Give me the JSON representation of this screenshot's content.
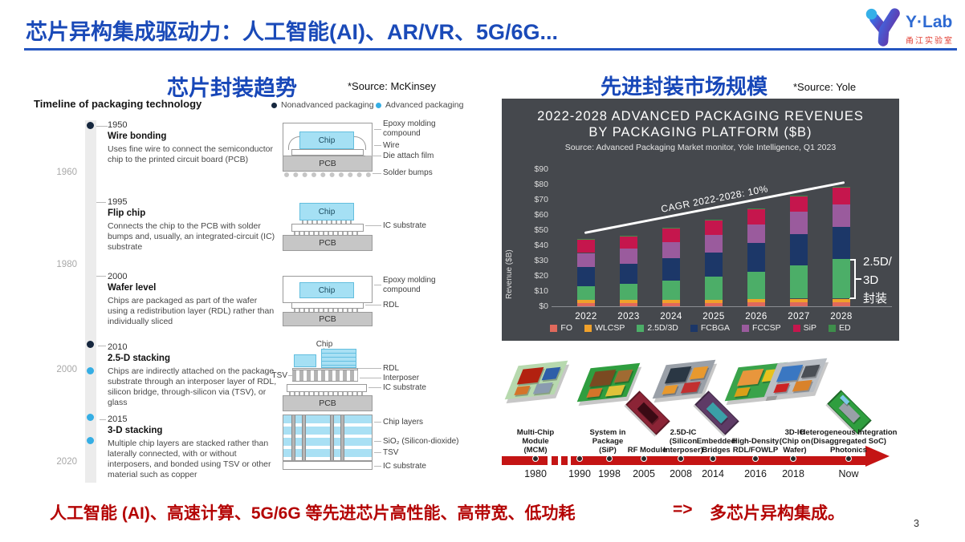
{
  "header": {
    "title": "芯片异构集成驱动力：人工智能(AI)、AR/VR、5G/6G...",
    "logo_text": "Y·Lab",
    "logo_subtext": "甬江实验室"
  },
  "left": {
    "heading": "芯片封装趋势",
    "source": "*Source: McKinsey",
    "timeline_title": "Timeline of packaging technology",
    "legend": [
      {
        "label": "Nonadvanced packaging",
        "color": "#16273e"
      },
      {
        "label": "Advanced packaging",
        "color": "#35aee4"
      }
    ],
    "axis_years": [
      "1960",
      "1980",
      "2000",
      "2020"
    ],
    "entries": [
      {
        "year": "1950",
        "title": "Wire bonding",
        "desc": "Uses fine wire to connect the semiconductor chip to the printed circuit board (PCB)"
      },
      {
        "year": "1995",
        "title": "Flip chip",
        "desc": "Connects the chip to the PCB with solder bumps and, usually, an integrated-circuit (IC) substrate"
      },
      {
        "year": "2000",
        "title": "Wafer level",
        "desc": "Chips are packaged as part of the wafer using a redistribution layer (RDL) rather than individually sliced"
      },
      {
        "year": "2010",
        "title": "2.5-D stacking",
        "desc": "Chips are indirectly attached on the package substrate through an interposer layer of RDL, silicon bridge, through-silicon via (TSV), or glass"
      },
      {
        "year": "2015",
        "title": "3-D stacking",
        "desc": "Multiple chip layers are stacked rather than laterally connected, with or without interposers, and bonded using TSV or other material such as copper"
      }
    ],
    "diagram_text": {
      "chip": "Chip",
      "pcb": "PCB",
      "tsv": "TSV",
      "d1": [
        "Epoxy molding\ncompound",
        "Wire",
        "Die attach film",
        "Solder bumps"
      ],
      "d2": [
        "IC substrate"
      ],
      "d3": [
        "Epoxy molding\ncompound",
        "RDL"
      ],
      "d4": [
        "RDL",
        "Interposer",
        "IC substrate"
      ],
      "d5": [
        "Chip layers",
        "SiO₂ (Silicon-dioxide)",
        "TSV",
        "IC substrate"
      ]
    }
  },
  "right": {
    "heading": "先进封装市场规模",
    "source": "*Source: Yole",
    "modules": [
      "Multi-Chip\nModule\n(MCM)",
      "System in\nPackage\n(SiP)",
      "RF Module",
      "2.5D-IC\n(Silicon\nInterposer)",
      "Embedded\nBridges",
      "High-Density\nRDL/FOWLP",
      "3D-IC\n(Chip on\nWafer)",
      "Heterogeneous Integration\n(Disaggregated SoC)\nPhotonics"
    ],
    "arrow_years": [
      "1980",
      "1990",
      "1998",
      "2005",
      "2008",
      "2014",
      "2016",
      "2018",
      "Now"
    ]
  },
  "footer": {
    "statement": "人工智能 (AI)、高速计算、5G/6G 等先进芯片高性能、高带宽、低功耗",
    "arrow": "=>",
    "conclusion": "多芯片异构集成。",
    "page": "3"
  },
  "chart_data": {
    "type": "bar",
    "subtype": "stacked",
    "title": "2022-2028 ADVANCED PACKAGING REVENUES BY PACKAGING PLATFORM ($B)",
    "title_lines": [
      "2022-2028 ADVANCED PACKAGING REVENUES",
      "BY PACKAGING PLATFORM ($B)"
    ],
    "subtitle": "Source: Advanced Packaging Market monitor, Yole Intelligence, Q1 2023",
    "xlabel": "",
    "ylabel": "Revenue ($B)",
    "ylim": [
      0,
      90
    ],
    "yticks": [
      "$90",
      "$80",
      "$70",
      "$60",
      "$50",
      "$40",
      "$30",
      "$20",
      "$10",
      "$0"
    ],
    "grid": false,
    "legend_position": "bottom",
    "background": "#45484d",
    "categories": [
      "2022",
      "2023",
      "2024",
      "2025",
      "2026",
      "2027",
      "2028"
    ],
    "series": [
      {
        "name": "FO",
        "color": "#e0695c",
        "values": [
          2,
          2,
          2,
          2,
          2.5,
          2.5,
          2.5
        ]
      },
      {
        "name": "WLCSP",
        "color": "#f0a12b",
        "values": [
          2,
          2,
          2,
          2,
          2,
          2.5,
          2.5
        ]
      },
      {
        "name": "2.5D/3D",
        "color": "#4cae68",
        "values": [
          9,
          10.5,
          13,
          15.5,
          18,
          22,
          26
        ]
      },
      {
        "name": "FCBGA",
        "color": "#1c3768",
        "values": [
          13,
          13.5,
          14.5,
          16,
          19,
          20.5,
          21
        ]
      },
      {
        "name": "FCCSP",
        "color": "#9a5b9d",
        "values": [
          9,
          10,
          10.5,
          11.5,
          12,
          14.5,
          15
        ]
      },
      {
        "name": "SiP",
        "color": "#c5164d",
        "values": [
          8.7,
          8.2,
          9.2,
          9.7,
          10.1,
          10,
          11
        ]
      },
      {
        "name": "ED",
        "color": "#3e8e4b",
        "values": [
          0.3,
          0.3,
          0.3,
          0.3,
          0.4,
          0.5,
          0.5
        ]
      }
    ],
    "totals": [
      44,
      46.5,
      51.5,
      57,
      64,
      72.5,
      78.5
    ],
    "annotation_line": "CAGR 2022-2028: 10%",
    "bracket_label": "2.5D/\n3D\n封装",
    "bracket_range": [
      5,
      31
    ]
  }
}
